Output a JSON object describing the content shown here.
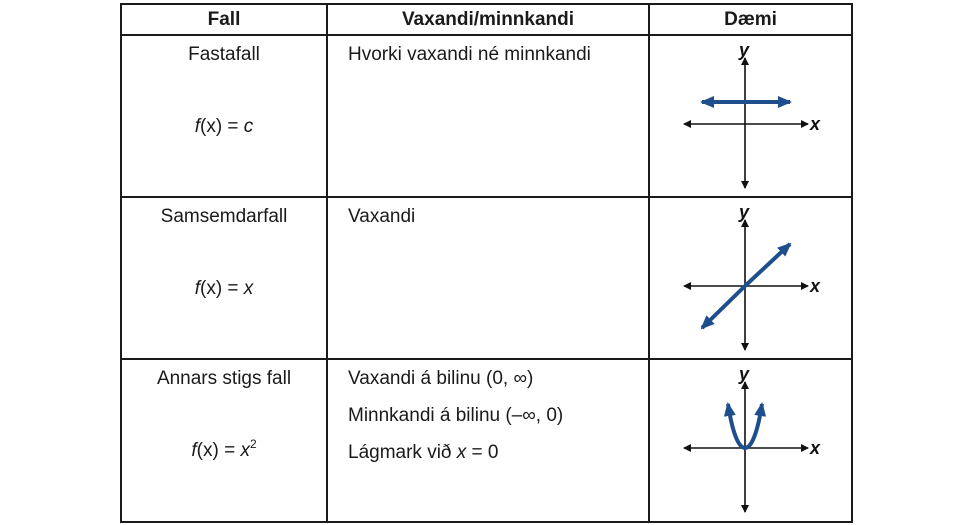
{
  "table": {
    "headers": [
      "Fall",
      "Vaxandi/minnkandi",
      "Dæmi"
    ],
    "rows": [
      {
        "case": "Fastafall",
        "formula": {
          "lhs_fn": "f",
          "lhs_var": "x",
          "eq": " = ",
          "rhs": "c",
          "rhs_sup": ""
        },
        "behavior": [
          "Hvorki vaxandi né minnkandi"
        ],
        "example_axes": {
          "x": "x",
          "y": "y"
        }
      },
      {
        "case": "Samsemdarfall",
        "formula": {
          "lhs_fn": "f",
          "lhs_var": "x",
          "eq": " = ",
          "rhs": "x",
          "rhs_sup": ""
        },
        "behavior": [
          "Vaxandi"
        ],
        "example_axes": {
          "x": "x",
          "y": "y"
        }
      },
      {
        "case": "Annars stigs fall",
        "formula": {
          "lhs_fn": "f",
          "lhs_var": "x",
          "eq": " = ",
          "rhs": "x",
          "rhs_sup": "2"
        },
        "behavior": [
          "Vaxandi á bilinu (0, ∞)",
          "Minnkandi á bilinu (–∞, 0)"
        ],
        "behavior_last": {
          "prefix": "Lágmark við ",
          "var": "x",
          "suffix": " = 0"
        },
        "example_axes": {
          "x": "x",
          "y": "y"
        }
      }
    ]
  },
  "colors": {
    "curve": "#1f4e8c",
    "axis": "#111111",
    "border": "#1a1a1a"
  },
  "icons": [
    "constant-graph-icon",
    "identity-graph-icon",
    "quadratic-graph-icon"
  ]
}
